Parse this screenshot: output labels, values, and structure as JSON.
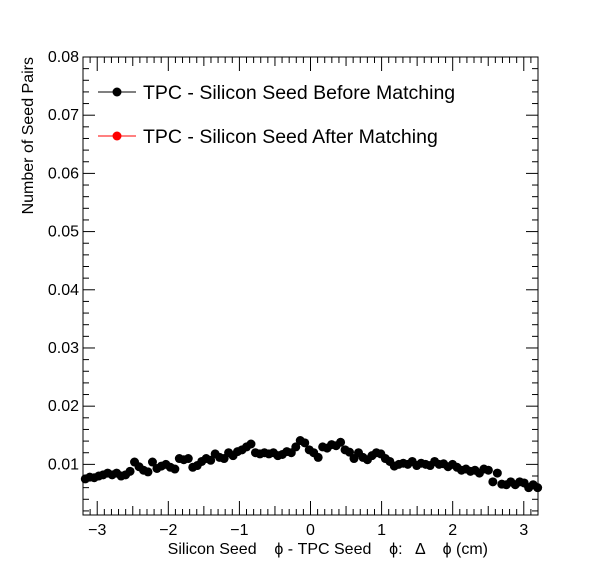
{
  "chart_data": {
    "type": "scatter",
    "title": "",
    "xlabel": "Silicon Seed    ϕ - TPC Seed    ϕ:   Δ    ϕ (cm)",
    "ylabel": "Number of Seed Pairs",
    "xlim": [
      -3.2,
      3.2
    ],
    "ylim": [
      0.0013,
      0.08
    ],
    "x_ticks": [
      -3,
      -2,
      -1,
      0,
      1,
      2,
      3
    ],
    "x_tick_labels": [
      "−3",
      "−2",
      "−1",
      "0",
      "1",
      "2",
      "3"
    ],
    "y_ticks": [
      0.01,
      0.02,
      0.03,
      0.04,
      0.05,
      0.06,
      0.07,
      0.08
    ],
    "y_tick_labels": [
      "0.01",
      "0.02",
      "0.03",
      "0.04",
      "0.05",
      "0.06",
      "0.07",
      "0.08"
    ],
    "grid": false,
    "legend_position": "top-left",
    "series": [
      {
        "name": "TPC - Silicon Seed Before Matching",
        "color": "#000000",
        "x": [
          -3.168,
          -3.105,
          -3.042,
          -2.979,
          -2.916,
          -2.853,
          -2.79,
          -2.727,
          -2.664,
          -2.601,
          -2.538,
          -2.475,
          -2.412,
          -2.349,
          -2.286,
          -2.223,
          -2.16,
          -2.097,
          -2.034,
          -1.971,
          -1.908,
          -1.845,
          -1.782,
          -1.719,
          -1.656,
          -1.593,
          -1.53,
          -1.467,
          -1.404,
          -1.341,
          -1.278,
          -1.215,
          -1.152,
          -1.089,
          -1.026,
          -0.963,
          -0.9,
          -0.837,
          -0.774,
          -0.711,
          -0.648,
          -0.585,
          -0.522,
          -0.459,
          -0.396,
          -0.333,
          -0.27,
          -0.207,
          -0.144,
          -0.081,
          -0.018,
          0.045,
          0.108,
          0.171,
          0.234,
          0.297,
          0.36,
          0.423,
          0.486,
          0.549,
          0.612,
          0.675,
          0.738,
          0.801,
          0.864,
          0.927,
          0.99,
          1.053,
          1.116,
          1.179,
          1.242,
          1.305,
          1.368,
          1.431,
          1.494,
          1.557,
          1.62,
          1.683,
          1.746,
          1.809,
          1.872,
          1.935,
          1.998,
          2.061,
          2.124,
          2.187,
          2.25,
          2.313,
          2.376,
          2.439,
          2.502,
          2.565,
          2.628,
          2.691,
          2.754,
          2.817,
          2.88,
          2.943,
          3.006,
          3.069,
          3.132,
          3.195
        ],
        "y": [
          0.0075,
          0.0078,
          0.0077,
          0.008,
          0.0082,
          0.0085,
          0.0082,
          0.0085,
          0.008,
          0.0082,
          0.0088,
          0.0104,
          0.0096,
          0.009,
          0.0087,
          0.0104,
          0.0093,
          0.0097,
          0.01,
          0.0095,
          0.0092,
          0.011,
          0.0108,
          0.011,
          0.0095,
          0.0098,
          0.0105,
          0.011,
          0.0107,
          0.0118,
          0.0112,
          0.011,
          0.012,
          0.0115,
          0.0122,
          0.0125,
          0.013,
          0.0135,
          0.012,
          0.0118,
          0.012,
          0.0118,
          0.012,
          0.0115,
          0.0117,
          0.0122,
          0.012,
          0.013,
          0.0141,
          0.0137,
          0.0125,
          0.012,
          0.0112,
          0.013,
          0.0128,
          0.0134,
          0.0132,
          0.0138,
          0.0125,
          0.0121,
          0.011,
          0.012,
          0.0112,
          0.0108,
          0.0115,
          0.012,
          0.0118,
          0.011,
          0.0105,
          0.0097,
          0.01,
          0.0102,
          0.01,
          0.0105,
          0.0098,
          0.0102,
          0.01,
          0.0098,
          0.0105,
          0.01,
          0.0101,
          0.0096,
          0.01,
          0.0095,
          0.009,
          0.0092,
          0.0088,
          0.009,
          0.0085,
          0.0092,
          0.009,
          0.007,
          0.0085,
          0.0066,
          0.0065,
          0.007,
          0.0065,
          0.007,
          0.0068,
          0.006,
          0.0065,
          0.006
        ]
      },
      {
        "name": "TPC - Silicon Seed After Matching",
        "color": "#ff0000",
        "x": [],
        "y": []
      }
    ]
  }
}
